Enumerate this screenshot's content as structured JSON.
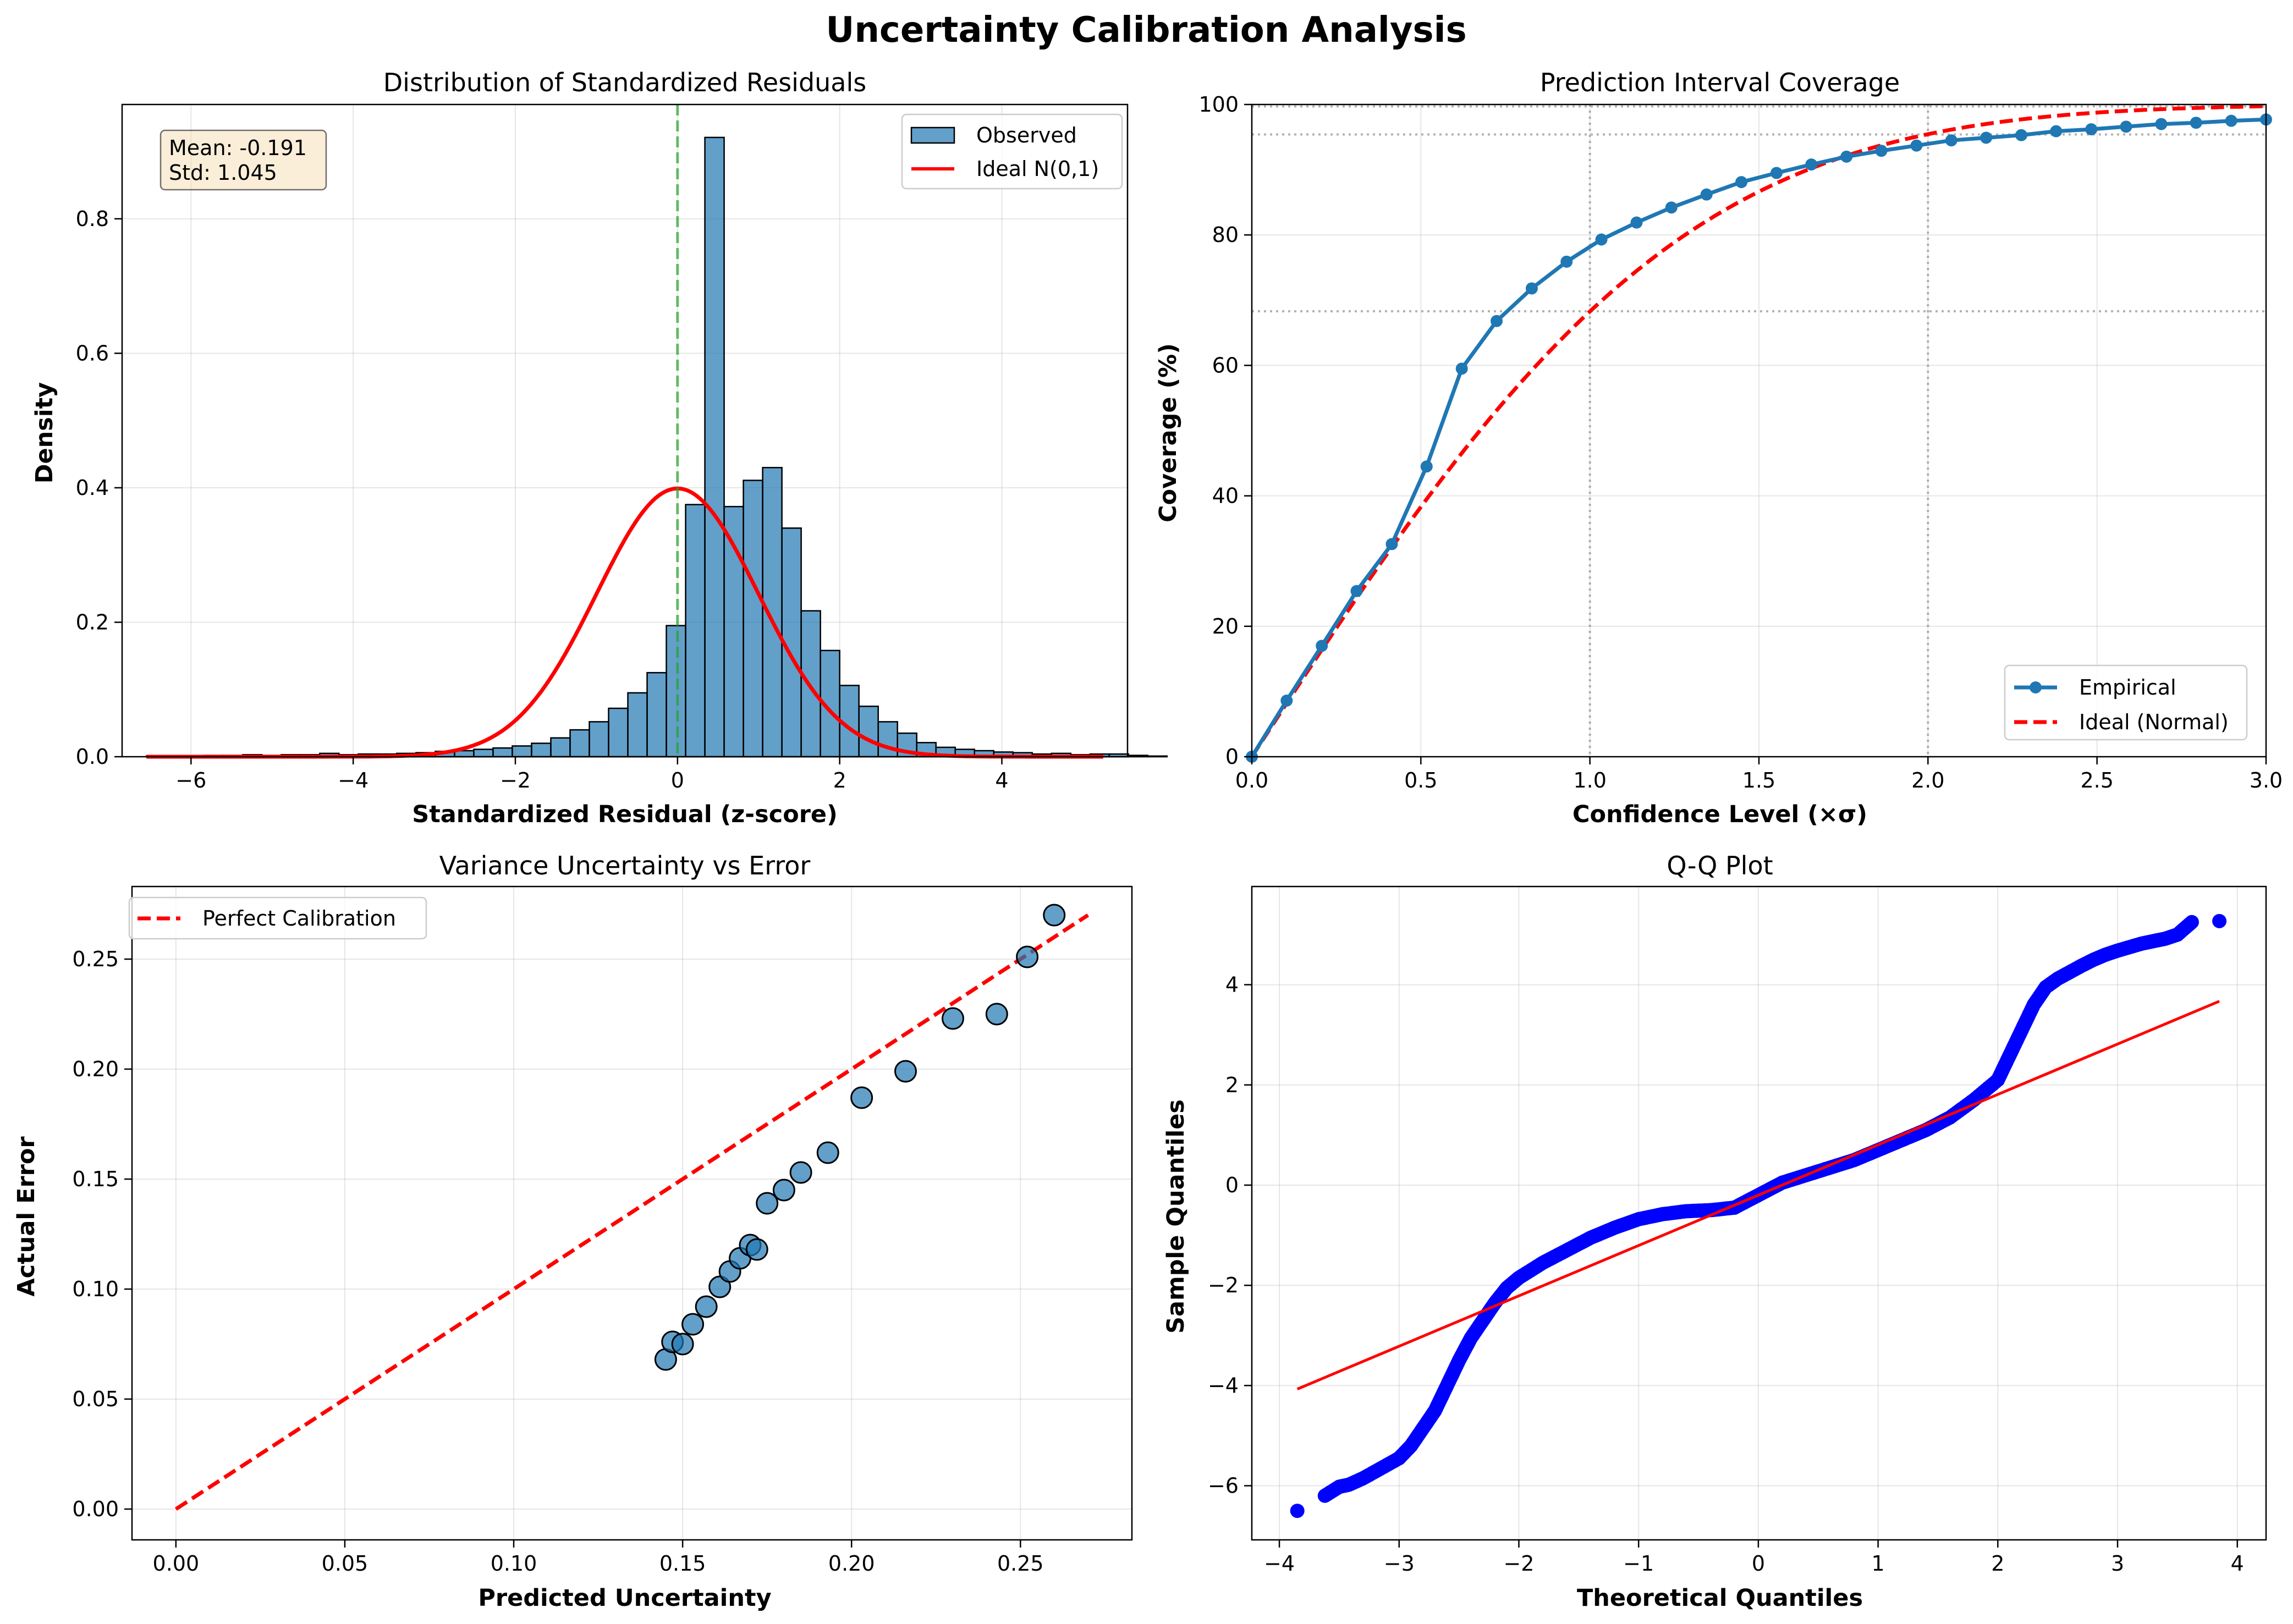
{
  "figure": {
    "title": "Uncertainty Calibration Analysis"
  },
  "chart_data": [
    {
      "type": "bar",
      "title": "Distribution of Standardized Residuals",
      "xlabel": "Standardized Residual (z-score)",
      "ylabel": "Density",
      "xlim": [
        -6.85,
        5.55
      ],
      "ylim": [
        0,
        0.97
      ],
      "xticks": [
        -6,
        -4,
        -2,
        0,
        2,
        4
      ],
      "xtick_labels": [
        "−6",
        "−4",
        "−2",
        "0",
        "2",
        "4"
      ],
      "yticks": [
        0.0,
        0.2,
        0.4,
        0.6,
        0.8
      ],
      "ytick_labels": [
        "0.0",
        "0.2",
        "0.4",
        "0.6",
        "0.8"
      ],
      "hist_start": -6.55,
      "bin_width": 0.2375,
      "densities": [
        0.001,
        0.001,
        0.001,
        0.002,
        0.002,
        0.003,
        0.002,
        0.003,
        0.003,
        0.005,
        0.003,
        0.004,
        0.004,
        0.005,
        0.006,
        0.008,
        0.009,
        0.011,
        0.013,
        0.016,
        0.02,
        0.028,
        0.04,
        0.052,
        0.072,
        0.095,
        0.125,
        0.195,
        0.375,
        0.921,
        0.372,
        0.411,
        0.43,
        0.34,
        0.217,
        0.158,
        0.106,
        0.075,
        0.052,
        0.035,
        0.021,
        0.014,
        0.011,
        0.009,
        0.007,
        0.006,
        0.004,
        0.005,
        0.003,
        0.004,
        0.004,
        0.002,
        0.001
      ],
      "ideal_curve": {
        "name": "Ideal N(0,1)",
        "mean": 0,
        "std": 1
      },
      "vline_x": 0,
      "legend": [
        "Observed",
        "Ideal N(0,1)"
      ],
      "stats_box": [
        "Mean: -0.191",
        "Std: 1.045"
      ]
    },
    {
      "type": "line",
      "title": "Prediction Interval Coverage",
      "xlabel": "Confidence Level (×σ)",
      "ylabel": "Coverage (%)",
      "xlim": [
        0,
        3
      ],
      "ylim": [
        0,
        100
      ],
      "xticks": [
        0,
        0.5,
        1,
        1.5,
        2,
        2.5,
        3
      ],
      "xtick_labels": [
        "0.0",
        "0.5",
        "1.0",
        "1.5",
        "2.0",
        "2.5",
        "3.0"
      ],
      "yticks": [
        0,
        20,
        40,
        60,
        80,
        100
      ],
      "ytick_labels": [
        "0",
        "20",
        "40",
        "60",
        "80",
        "100"
      ],
      "ref_vlines": [
        1,
        2
      ],
      "ref_hlines": [
        68.3,
        95.4,
        99.7
      ],
      "series": [
        {
          "name": "Empirical",
          "x": [
            0,
            0.103,
            0.207,
            0.31,
            0.414,
            0.517,
            0.621,
            0.724,
            0.828,
            0.931,
            1.034,
            1.138,
            1.241,
            1.345,
            1.448,
            1.552,
            1.655,
            1.759,
            1.862,
            1.966,
            2.069,
            2.172,
            2.276,
            2.379,
            2.483,
            2.586,
            2.69,
            2.793,
            2.897,
            3.0
          ],
          "y": [
            0,
            8.6,
            17.0,
            25.4,
            32.6,
            44.5,
            59.5,
            66.8,
            71.8,
            75.9,
            79.3,
            81.9,
            84.2,
            86.2,
            88.1,
            89.5,
            90.8,
            92.0,
            92.9,
            93.7,
            94.5,
            94.9,
            95.3,
            95.9,
            96.2,
            96.6,
            97.0,
            97.2,
            97.5,
            97.7
          ]
        },
        {
          "name": "Ideal (Normal)",
          "formula": "erf(x / sqrt(2)) * 100"
        }
      ],
      "legend": [
        "Empirical",
        "Ideal (Normal)"
      ]
    },
    {
      "type": "scatter",
      "title": "Variance Uncertainty vs Error",
      "xlabel": "Predicted Uncertainty",
      "ylabel": "Actual Error",
      "xlim": [
        -0.013,
        0.283
      ],
      "ylim": [
        -0.014,
        0.283
      ],
      "xticks": [
        0,
        0.05,
        0.1,
        0.15,
        0.2,
        0.25
      ],
      "xtick_labels": [
        "0.00",
        "0.05",
        "0.10",
        "0.15",
        "0.20",
        "0.25"
      ],
      "yticks": [
        0,
        0.05,
        0.1,
        0.15,
        0.2,
        0.25
      ],
      "ytick_labels": [
        "0.00",
        "0.05",
        "0.10",
        "0.15",
        "0.20",
        "0.25"
      ],
      "points": {
        "x": [
          0.145,
          0.147,
          0.15,
          0.153,
          0.157,
          0.161,
          0.164,
          0.167,
          0.17,
          0.172,
          0.175,
          0.18,
          0.185,
          0.193,
          0.203,
          0.216,
          0.23,
          0.243,
          0.252,
          0.26
        ],
        "y": [
          0.068,
          0.076,
          0.075,
          0.084,
          0.092,
          0.101,
          0.108,
          0.114,
          0.12,
          0.118,
          0.139,
          0.145,
          0.153,
          0.162,
          0.187,
          0.199,
          0.223,
          0.225,
          0.251,
          0.27
        ]
      },
      "reference_line": {
        "name": "Perfect Calibration",
        "x": [
          0,
          0.27
        ],
        "y": [
          0,
          0.27
        ]
      },
      "legend": [
        "Perfect Calibration"
      ]
    },
    {
      "type": "scatter",
      "title": "Q-Q Plot",
      "xlabel": "Theoretical Quantiles",
      "ylabel": "Sample Quantiles",
      "xlim": [
        -4.23,
        4.24
      ],
      "ylim": [
        -7.08,
        5.96
      ],
      "xticks": [
        -4,
        -3,
        -2,
        -1,
        0,
        1,
        2,
        3,
        4
      ],
      "xtick_labels": [
        "−4",
        "−3",
        "−2",
        "−1",
        "0",
        "1",
        "2",
        "3",
        "4"
      ],
      "yticks": [
        -6,
        -4,
        -2,
        0,
        2,
        4
      ],
      "ytick_labels": [
        "−6",
        "−4",
        "−2",
        "0",
        "2",
        "4"
      ],
      "points": {
        "x": [
          -3.85,
          -3.62,
          -3.5,
          -3.42,
          -3.3,
          -3.15,
          -3.0,
          -2.9,
          -2.8,
          -2.7,
          -2.6,
          -2.5,
          -2.4,
          -2.3,
          -2.2,
          -2.1,
          -2.0,
          -1.8,
          -1.6,
          -1.4,
          -1.2,
          -1.0,
          -0.8,
          -0.6,
          -0.4,
          -0.2,
          0.0,
          0.2,
          0.4,
          0.6,
          0.8,
          1.0,
          1.2,
          1.4,
          1.6,
          1.8,
          2.0,
          2.1,
          2.2,
          2.3,
          2.4,
          2.5,
          2.6,
          2.7,
          2.8,
          2.9,
          3.0,
          3.1,
          3.2,
          3.3,
          3.4,
          3.5,
          3.62,
          3.85
        ],
        "y": [
          -6.5,
          -6.2,
          -6.02,
          -5.98,
          -5.85,
          -5.65,
          -5.45,
          -5.2,
          -4.85,
          -4.5,
          -4.0,
          -3.5,
          -3.05,
          -2.7,
          -2.35,
          -2.05,
          -1.85,
          -1.55,
          -1.3,
          -1.05,
          -0.85,
          -0.68,
          -0.58,
          -0.52,
          -0.5,
          -0.45,
          -0.2,
          0.05,
          0.2,
          0.35,
          0.5,
          0.7,
          0.9,
          1.1,
          1.35,
          1.7,
          2.1,
          2.6,
          3.1,
          3.6,
          3.95,
          4.12,
          4.25,
          4.38,
          4.5,
          4.6,
          4.68,
          4.75,
          4.82,
          4.87,
          4.92,
          5.0,
          5.25,
          5.27
        ]
      },
      "fit_line": {
        "x": [
          -3.85,
          3.85
        ],
        "y": [
          -4.07,
          3.67
        ]
      }
    }
  ]
}
